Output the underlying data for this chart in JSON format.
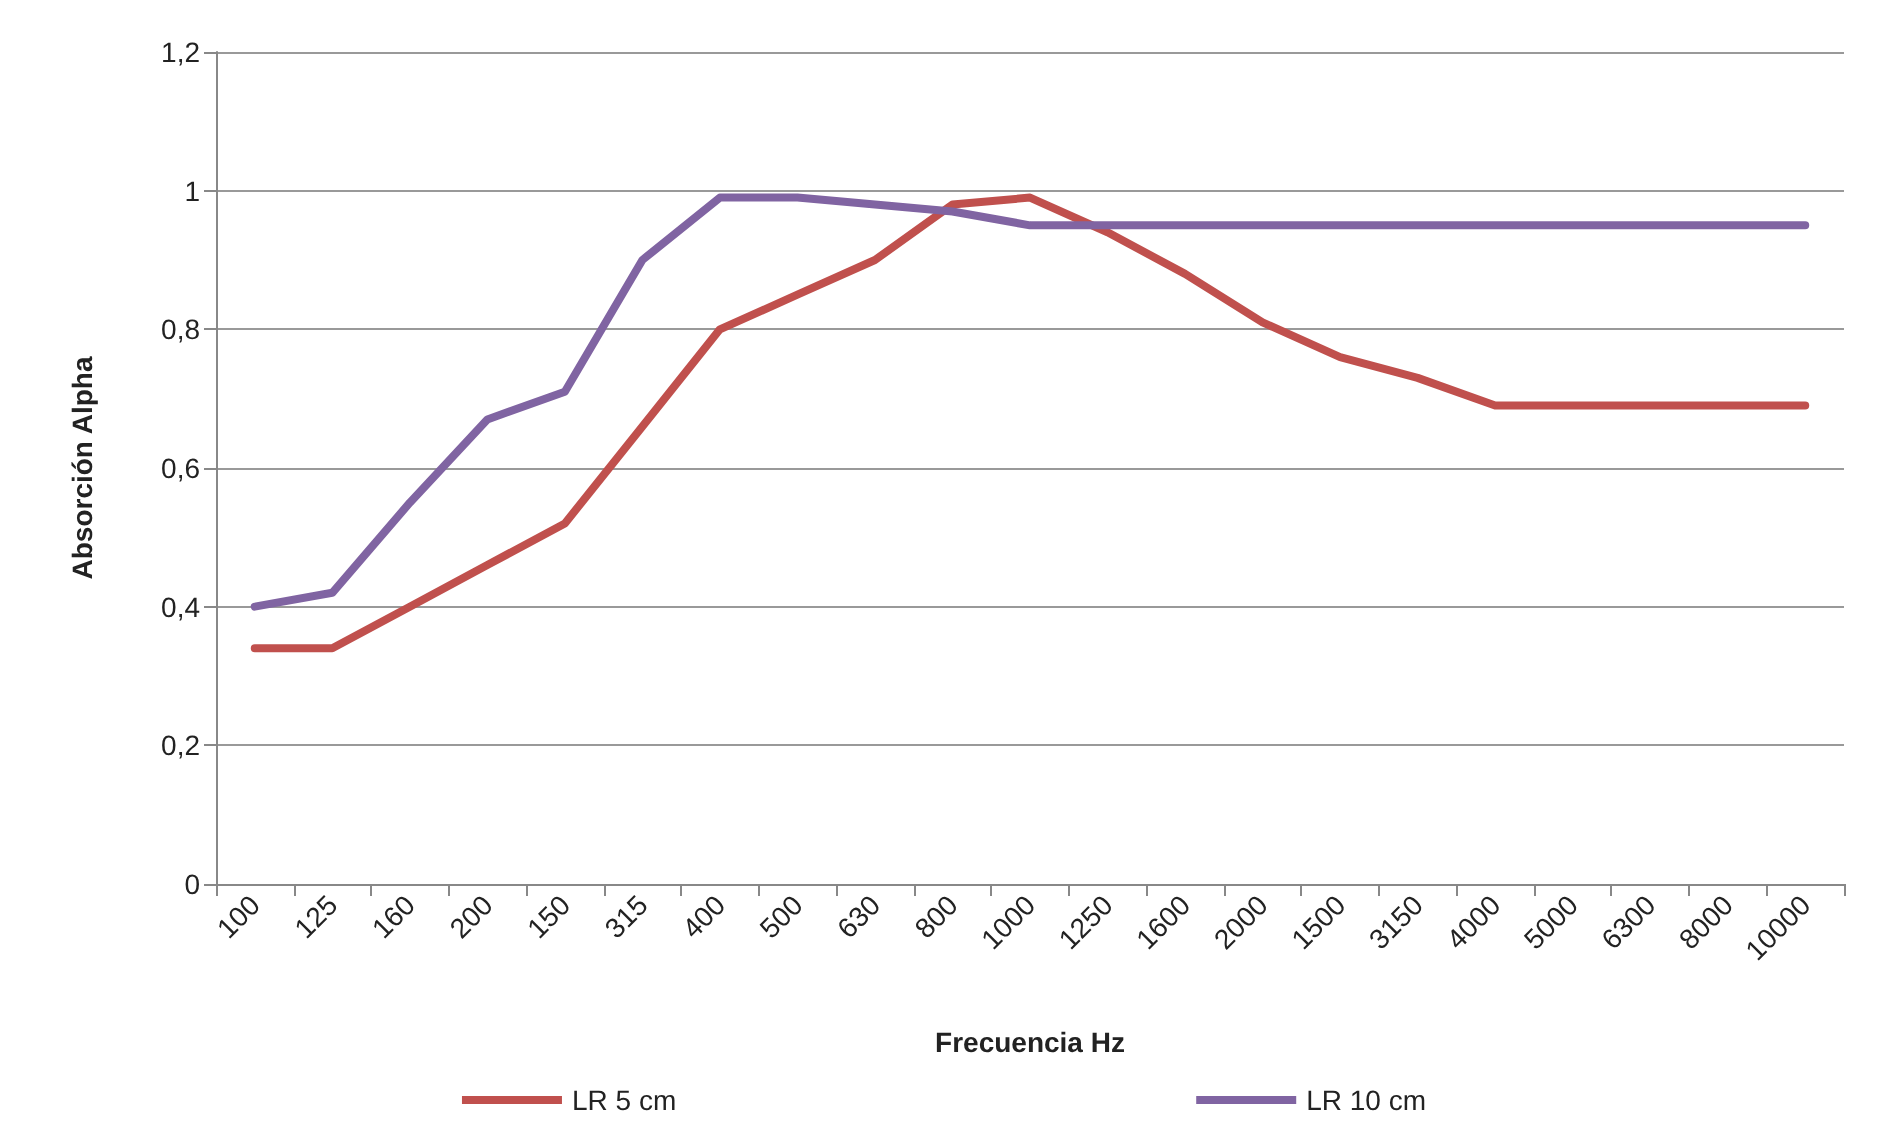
{
  "chart_data": {
    "type": "line",
    "xlabel": "Frecuencia Hz",
    "ylabel": "Absorción Alpha",
    "categories": [
      "100",
      "125",
      "160",
      "200",
      "150",
      "315",
      "400",
      "500",
      "630",
      "800",
      "1000",
      "1250",
      "1600",
      "2000",
      "1500",
      "3150",
      "4000",
      "5000",
      "6300",
      "8000",
      "10000"
    ],
    "series": [
      {
        "name": "LR 5 cm",
        "color": "#c0504d",
        "values": [
          0.34,
          0.34,
          0.4,
          0.46,
          0.52,
          0.66,
          0.8,
          0.85,
          0.9,
          0.98,
          0.99,
          0.94,
          0.88,
          0.81,
          0.76,
          0.73,
          0.69,
          0.69,
          0.69,
          0.69,
          0.69
        ]
      },
      {
        "name": "LR 10 cm",
        "color": "#8064a2",
        "values": [
          0.4,
          0.42,
          0.55,
          0.67,
          0.71,
          0.9,
          0.99,
          0.99,
          0.98,
          0.97,
          0.95,
          0.95,
          0.95,
          0.95,
          0.95,
          0.95,
          0.95,
          0.95,
          0.95,
          0.95,
          0.95
        ]
      }
    ],
    "ylim": [
      0,
      1.2
    ],
    "yticks": [
      {
        "value": 0,
        "label": "0"
      },
      {
        "value": 0.2,
        "label": "0,2"
      },
      {
        "value": 0.4,
        "label": "0,4"
      },
      {
        "value": 0.6,
        "label": "0,6"
      },
      {
        "value": 0.8,
        "label": "0,8"
      },
      {
        "value": 1,
        "label": "1"
      },
      {
        "value": 1.2,
        "label": "1,2"
      }
    ],
    "grid": "y",
    "legend": "bottom",
    "marker": "none",
    "line_style": "solid"
  }
}
